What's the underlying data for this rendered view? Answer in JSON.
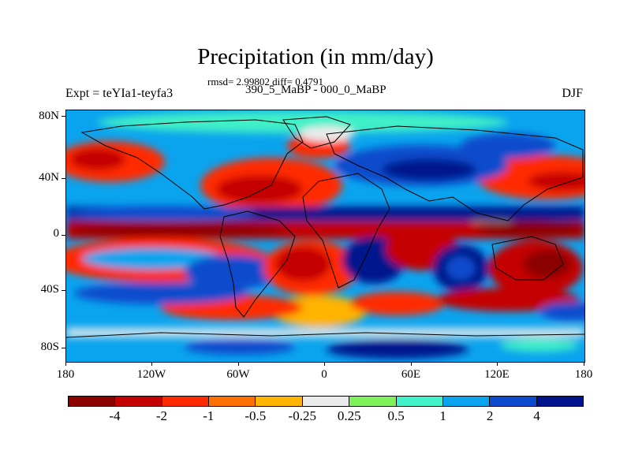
{
  "title": "Precipitation (in mm/day)",
  "stats": "rmsd= 2.99802 diff= 0.4791",
  "period": "390_5_MaBP - 000_0_MaBP",
  "expt": "Expt = teYIa1-teyfa3",
  "season": "DJF",
  "lat_labels": [
    "80N",
    "40N",
    "0",
    "40S",
    "80S"
  ],
  "lon_labels": [
    "180",
    "120W",
    "60W",
    "0",
    "60E",
    "120E",
    "180"
  ],
  "colorbar": {
    "colors": [
      "#8b0000",
      "#c40000",
      "#ff2a00",
      "#ff7000",
      "#ffb400",
      "#ebebeb",
      "#7ef05a",
      "#3ff0c8",
      "#0aa4ee",
      "#0a4ccc",
      "#00128c"
    ],
    "labels": [
      "-4",
      "-2",
      "-1",
      "-0.5",
      "-0.25",
      "0.25",
      "0.5",
      "1",
      "2",
      "4"
    ]
  }
}
